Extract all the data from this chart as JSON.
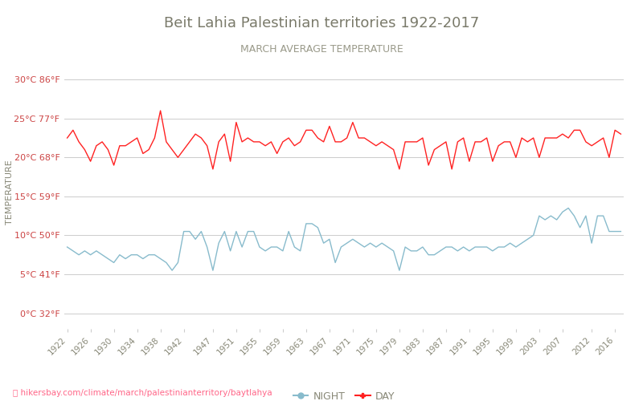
{
  "title": "Beit Lahia Palestinian territories 1922-2017",
  "subtitle": "MARCH AVERAGE TEMPERATURE",
  "ylabel": "TEMPERATURE",
  "footer": "hikersbay.com/climate/march/palestinianterritory/baytlahya",
  "title_color": "#7a7a6a",
  "subtitle_color": "#9a9a8a",
  "background_color": "#ffffff",
  "grid_color": "#cccccc",
  "day_color": "#ff2222",
  "night_color": "#88bbcc",
  "years": [
    1922,
    1923,
    1924,
    1925,
    1926,
    1927,
    1928,
    1929,
    1930,
    1931,
    1932,
    1933,
    1934,
    1935,
    1936,
    1937,
    1938,
    1939,
    1940,
    1941,
    1942,
    1943,
    1944,
    1945,
    1946,
    1947,
    1948,
    1949,
    1950,
    1951,
    1952,
    1953,
    1954,
    1955,
    1956,
    1957,
    1958,
    1959,
    1960,
    1961,
    1962,
    1963,
    1964,
    1965,
    1966,
    1967,
    1968,
    1969,
    1970,
    1971,
    1972,
    1973,
    1974,
    1975,
    1976,
    1977,
    1978,
    1979,
    1980,
    1981,
    1982,
    1983,
    1984,
    1985,
    1986,
    1987,
    1988,
    1989,
    1990,
    1991,
    1992,
    1993,
    1994,
    1995,
    1996,
    1997,
    1998,
    1999,
    2000,
    2001,
    2002,
    2003,
    2004,
    2005,
    2006,
    2007,
    2008,
    2009,
    2010,
    2011,
    2012,
    2013,
    2014,
    2015,
    2016,
    2017
  ],
  "day_temps": [
    22.5,
    23.5,
    22.0,
    21.0,
    19.5,
    21.5,
    22.0,
    21.0,
    19.0,
    21.5,
    21.5,
    22.0,
    22.5,
    20.5,
    21.0,
    22.5,
    26.0,
    22.0,
    21.0,
    20.0,
    21.0,
    22.0,
    23.0,
    22.5,
    21.5,
    18.5,
    22.0,
    23.0,
    19.5,
    24.5,
    22.0,
    22.5,
    22.0,
    22.0,
    21.5,
    22.0,
    20.5,
    22.0,
    22.5,
    21.5,
    22.0,
    23.5,
    23.5,
    22.5,
    22.0,
    24.0,
    22.0,
    22.0,
    22.5,
    24.5,
    22.5,
    22.5,
    22.0,
    21.5,
    22.0,
    21.5,
    21.0,
    18.5,
    22.0,
    22.0,
    22.0,
    22.5,
    19.0,
    21.0,
    21.5,
    22.0,
    18.5,
    22.0,
    22.5,
    19.5,
    22.0,
    22.0,
    22.5,
    19.5,
    21.5,
    22.0,
    22.0,
    20.0,
    22.5,
    22.0,
    22.5,
    20.0,
    22.5,
    22.5,
    22.5,
    23.0,
    22.5,
    23.5,
    23.5,
    22.0,
    21.5,
    22.0,
    22.5,
    20.0,
    23.5,
    23.0
  ],
  "night_temps": [
    8.5,
    8.0,
    7.5,
    8.0,
    7.5,
    8.0,
    7.5,
    7.0,
    6.5,
    7.5,
    7.0,
    7.5,
    7.5,
    7.0,
    7.5,
    7.5,
    7.0,
    6.5,
    5.5,
    6.5,
    10.5,
    10.5,
    9.5,
    10.5,
    8.5,
    5.5,
    9.0,
    10.5,
    8.0,
    10.5,
    8.5,
    10.5,
    10.5,
    8.5,
    8.0,
    8.5,
    8.5,
    8.0,
    10.5,
    8.5,
    8.0,
    11.5,
    11.5,
    11.0,
    9.0,
    9.5,
    6.5,
    8.5,
    9.0,
    9.5,
    9.0,
    8.5,
    9.0,
    8.5,
    9.0,
    8.5,
    8.0,
    5.5,
    8.5,
    8.0,
    8.0,
    8.5,
    7.5,
    7.5,
    8.0,
    8.5,
    8.5,
    8.0,
    8.5,
    8.0,
    8.5,
    8.5,
    8.5,
    8.0,
    8.5,
    8.5,
    9.0,
    8.5,
    9.0,
    9.5,
    10.0,
    12.5,
    12.0,
    12.5,
    12.0,
    13.0,
    13.5,
    12.5,
    11.0,
    12.5,
    9.0,
    12.5,
    12.5,
    10.5,
    10.5,
    10.5
  ],
  "yticks_c": [
    0,
    5,
    10,
    15,
    20,
    25,
    30
  ],
  "yticks_f": [
    32,
    41,
    50,
    59,
    68,
    77,
    86
  ],
  "ylim": [
    -2,
    33
  ],
  "xtick_years": [
    1922,
    1926,
    1930,
    1934,
    1938,
    1942,
    1947,
    1951,
    1955,
    1959,
    1963,
    1967,
    1971,
    1975,
    1979,
    1983,
    1987,
    1991,
    1995,
    1999,
    2003,
    2007,
    2012,
    2016
  ]
}
